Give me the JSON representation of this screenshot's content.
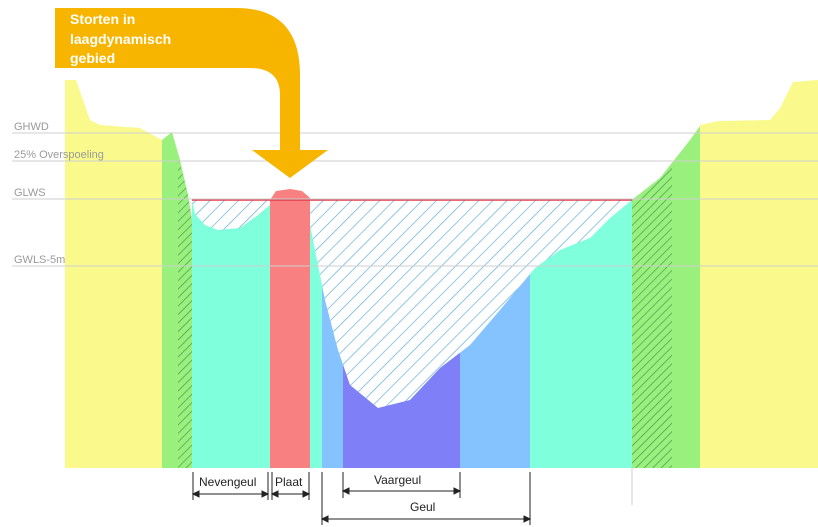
{
  "callout": {
    "lines": [
      "Storten in",
      "laagdynamisch",
      "gebied"
    ]
  },
  "levels": {
    "ghwd": "GHWD",
    "overspoeling": "25% Overspoeling",
    "glws": "GLWS",
    "gwls": "GWLS-5m"
  },
  "zones": {
    "nevengeul": "Nevengeul",
    "plaat": "Plaat",
    "vaargeul": "Vaargeul",
    "geul": "Geul"
  },
  "colors": {
    "dike": "#fafa8c",
    "slope": "#99f07c",
    "shallow": "#80ffdc",
    "plaat": "#f98080",
    "channel": "#84c3ff",
    "fairway": "#7f7ff7",
    "arrow": "#f7b500",
    "waterline": "#e03a4a",
    "hatch": "#5aa9d6",
    "level_line": "#cfcfcf"
  }
}
